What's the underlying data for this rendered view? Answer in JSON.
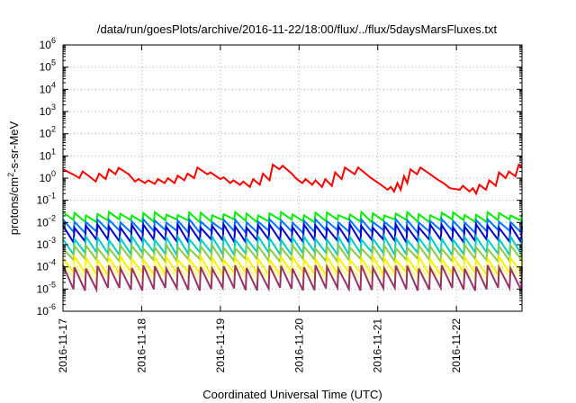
{
  "chart_data": {
    "type": "line",
    "title": "/data/run/goesPlots/archive/2016-11-22/18:00/flux/../flux/5daysMarsFluxes.txt",
    "xlabel": "Coordinated Universal Time (UTC)",
    "ylabel": "protons/cm²-s-sr-MeV",
    "ylabel_base": "protons/cm",
    "ylabel_sup": "2",
    "ylabel_rest": "-s-sr-MeV",
    "y_scale": "log",
    "ylim": [
      1e-06,
      1000000.0
    ],
    "y_ticks": [
      {
        "exp": "-6"
      },
      {
        "exp": "-5"
      },
      {
        "exp": "-4"
      },
      {
        "exp": "-3"
      },
      {
        "exp": "-2"
      },
      {
        "exp": "-1"
      },
      {
        "exp": "0"
      },
      {
        "exp": "1"
      },
      {
        "exp": "2"
      },
      {
        "exp": "3"
      },
      {
        "exp": "4"
      },
      {
        "exp": "5"
      },
      {
        "exp": "6"
      }
    ],
    "x_start": "2016-11-17",
    "x_end": "2016-11-22 20:00",
    "x_ticks": [
      "2016-11-17",
      "2016-11-18",
      "2016-11-19",
      "2016-11-20",
      "2016-11-21",
      "2016-11-22"
    ],
    "grid": true,
    "legend": "none",
    "series": [
      {
        "color": "#ff0000",
        "stroke_width": 2,
        "values": [
          [
            "2016-11-17 00:00",
            2.5
          ],
          [
            "2016-11-17 03:00",
            1.5
          ],
          [
            "2016-11-17 05:00",
            1.0
          ],
          [
            "2016-11-17 06:00",
            2.0
          ],
          [
            "2016-11-17 08:00",
            1.2
          ],
          [
            "2016-11-17 10:00",
            0.7
          ],
          [
            "2016-11-17 11:00",
            1.6
          ],
          [
            "2016-11-17 13:00",
            0.9
          ],
          [
            "2016-11-17 14:00",
            2.5
          ],
          [
            "2016-11-17 16:00",
            1.5
          ],
          [
            "2016-11-17 17:00",
            2.9
          ],
          [
            "2016-11-17 20:00",
            1.5
          ],
          [
            "2016-11-17 22:00",
            0.7
          ],
          [
            "2016-11-17 23:00",
            0.9
          ],
          [
            "2016-11-18 01:00",
            0.6
          ],
          [
            "2016-11-18 02:00",
            0.8
          ],
          [
            "2016-11-18 04:00",
            0.55
          ],
          [
            "2016-11-18 05:00",
            0.9
          ],
          [
            "2016-11-18 07:00",
            0.6
          ],
          [
            "2016-11-18 08:00",
            1.0
          ],
          [
            "2016-11-18 10:00",
            0.6
          ],
          [
            "2016-11-18 11:00",
            1.3
          ],
          [
            "2016-11-18 13:00",
            0.8
          ],
          [
            "2016-11-18 14:00",
            1.6
          ],
          [
            "2016-11-18 16:00",
            1.0
          ],
          [
            "2016-11-18 17:00",
            3.0
          ],
          [
            "2016-11-18 20:00",
            1.5
          ],
          [
            "2016-11-18 21:00",
            1.8
          ],
          [
            "2016-11-19 00:00",
            0.9
          ],
          [
            "2016-11-19 01:00",
            1.1
          ],
          [
            "2016-11-19 03:00",
            0.6
          ],
          [
            "2016-11-19 04:00",
            0.8
          ],
          [
            "2016-11-19 06:00",
            0.5
          ],
          [
            "2016-11-19 07:00",
            0.7
          ],
          [
            "2016-11-19 09:00",
            0.4
          ],
          [
            "2016-11-19 10:00",
            0.9
          ],
          [
            "2016-11-19 12:00",
            0.5
          ],
          [
            "2016-11-19 13:00",
            1.6
          ],
          [
            "2016-11-19 15:00",
            0.8
          ],
          [
            "2016-11-19 16:00",
            4.0
          ],
          [
            "2016-11-19 18:00",
            2.5
          ],
          [
            "2016-11-19 19:00",
            3.6
          ],
          [
            "2016-11-19 22:00",
            1.5
          ],
          [
            "2016-11-19 23:00",
            1.0
          ],
          [
            "2016-11-20 01:00",
            0.6
          ],
          [
            "2016-11-20 02:00",
            0.9
          ],
          [
            "2016-11-20 04:00",
            0.5
          ],
          [
            "2016-11-20 05:00",
            0.8
          ],
          [
            "2016-11-20 07:00",
            0.4
          ],
          [
            "2016-11-20 08:00",
            0.9
          ],
          [
            "2016-11-20 10:00",
            0.45
          ],
          [
            "2016-11-20 11:00",
            1.8
          ],
          [
            "2016-11-20 13:00",
            0.9
          ],
          [
            "2016-11-20 14:00",
            3.0
          ],
          [
            "2016-11-20 17:00",
            1.5
          ],
          [
            "2016-11-20 18:00",
            3.0
          ],
          [
            "2016-11-20 22:00",
            1.0
          ],
          [
            "2016-11-21 01:00",
            0.5
          ],
          [
            "2016-11-21 03:00",
            0.3
          ],
          [
            "2016-11-21 04:00",
            0.4
          ],
          [
            "2016-11-21 05:00",
            0.25
          ],
          [
            "2016-11-21 06:00",
            0.6
          ],
          [
            "2016-11-21 07:00",
            0.3
          ],
          [
            "2016-11-21 08:00",
            1.2
          ],
          [
            "2016-11-21 09:00",
            0.6
          ],
          [
            "2016-11-21 10:00",
            2.5
          ],
          [
            "2016-11-21 12:00",
            1.5
          ],
          [
            "2016-11-21 13:00",
            3.0
          ],
          [
            "2016-11-21 16:00",
            1.5
          ],
          [
            "2016-11-21 18:00",
            0.9
          ],
          [
            "2016-11-21 20:00",
            0.6
          ],
          [
            "2016-11-21 22:00",
            0.35
          ],
          [
            "2016-11-22 01:00",
            0.3
          ],
          [
            "2016-11-22 02:00",
            0.45
          ],
          [
            "2016-11-22 04:00",
            0.25
          ],
          [
            "2016-11-22 05:00",
            0.35
          ],
          [
            "2016-11-22 06:00",
            0.2
          ],
          [
            "2016-11-22 07:00",
            0.5
          ],
          [
            "2016-11-22 09:00",
            0.3
          ],
          [
            "2016-11-22 10:00",
            0.8
          ],
          [
            "2016-11-22 12:00",
            0.45
          ],
          [
            "2016-11-22 13:00",
            1.8
          ],
          [
            "2016-11-22 15:00",
            1.0
          ],
          [
            "2016-11-22 16:00",
            2.0
          ],
          [
            "2016-11-22 18:00",
            1.2
          ],
          [
            "2016-11-22 19:00",
            4.0
          ],
          [
            "2016-11-22 20:00",
            3.0
          ]
        ]
      },
      {
        "color": "#00ee00",
        "stroke_width": 2,
        "sawtooth": {
          "peak": 0.025,
          "trough": 0.012,
          "teeth": 40
        }
      },
      {
        "color": "#0077ff",
        "stroke_width": 2,
        "sawtooth": {
          "peak": 0.012,
          "trough": 0.004,
          "teeth": 40
        }
      },
      {
        "color": "#0000cc",
        "stroke_width": 2,
        "sawtooth": {
          "peak": 0.007,
          "trough": 0.0015,
          "teeth": 40
        }
      },
      {
        "color": "#00cccc",
        "stroke_width": 2,
        "sawtooth": {
          "peak": 0.002,
          "trough": 0.0004,
          "teeth": 40
        }
      },
      {
        "color": "#88cc44",
        "stroke_width": 2,
        "sawtooth": {
          "peak": 0.0008,
          "trough": 0.0002,
          "teeth": 40
        }
      },
      {
        "color": "#ffee00",
        "stroke_width": 2,
        "sawtooth": {
          "peak": 0.00025,
          "trough": 5e-05,
          "teeth": 40
        }
      },
      {
        "color": "#ffff88",
        "stroke_width": 2,
        "sawtooth": {
          "peak": 0.00012,
          "trough": 3e-05,
          "teeth": 40
        }
      },
      {
        "color": "#993366",
        "stroke_width": 2,
        "sawtooth": {
          "peak": 0.0001,
          "trough": 1e-05,
          "teeth": 40
        }
      }
    ]
  }
}
